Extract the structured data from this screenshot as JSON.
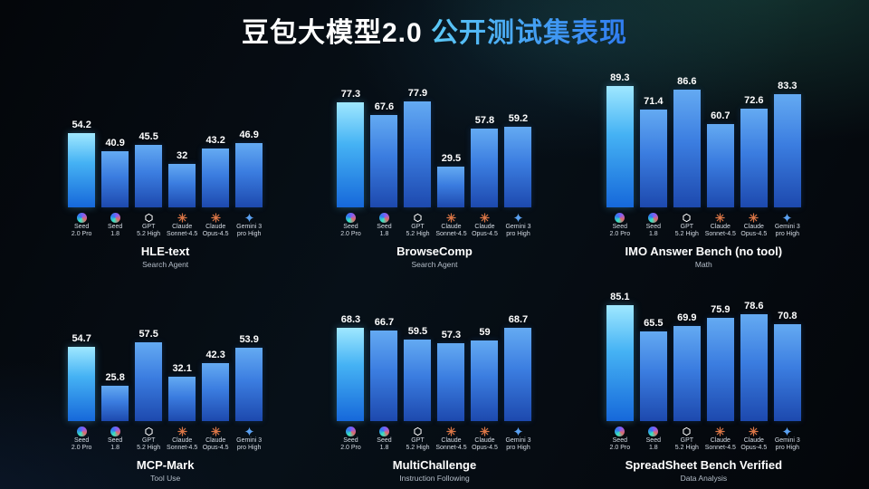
{
  "title": {
    "part1": "豆包大模型2.0",
    "part2": " 公开测试集表现"
  },
  "colors": {
    "accent_blue": "#2f7bf0",
    "accent_cyan": "#5ecdf7",
    "bar_highlight_top": "#9fe8ff",
    "bar_highlight_bottom": "#1668da",
    "bar_top": "#64aaf2",
    "bar_bottom": "#1d49ae",
    "claude_orange": "#d97546",
    "background": "#04060a"
  },
  "models": [
    {
      "label_line1": "Seed",
      "label_line2": "2.0 Pro",
      "icon": "seed-logo-icon"
    },
    {
      "label_line1": "Seed",
      "label_line2": "1.8",
      "icon": "seed-logo-icon"
    },
    {
      "label_line1": "GPT",
      "label_line2": "5.2 High",
      "icon": "openai-icon"
    },
    {
      "label_line1": "Claude",
      "label_line2": "Sonnet-4.5",
      "icon": "claude-icon"
    },
    {
      "label_line1": "Claude",
      "label_line2": "Opus-4.5",
      "icon": "claude-icon"
    },
    {
      "label_line1": "Gemini 3",
      "label_line2": "pro High",
      "icon": "gemini-icon"
    }
  ],
  "chart_data": [
    {
      "type": "bar",
      "title": "HLE-text",
      "subtitle": "Search Agent",
      "categories": [
        "Seed 2.0 Pro",
        "Seed 1.8",
        "GPT 5.2 High",
        "Claude Sonnet-4.5",
        "Claude Opus-4.5",
        "Gemini 3 pro High"
      ],
      "values": [
        54.2,
        40.9,
        45.5,
        32,
        43.2,
        46.9
      ],
      "ylim": [
        0,
        100
      ]
    },
    {
      "type": "bar",
      "title": "BrowseComp",
      "subtitle": "Search Agent",
      "categories": [
        "Seed 2.0 Pro",
        "Seed 1.8",
        "GPT 5.2 High",
        "Claude Sonnet-4.5",
        "Claude Opus-4.5",
        "Gemini 3 pro High"
      ],
      "values": [
        77.3,
        67.6,
        77.9,
        29.5,
        57.8,
        59.2
      ],
      "ylim": [
        0,
        100
      ]
    },
    {
      "type": "bar",
      "title": "IMO Answer Bench (no tool)",
      "subtitle": "Math",
      "categories": [
        "Seed 2.0 Pro",
        "Seed 1.8",
        "GPT 5.2 High",
        "Claude Sonnet-4.5",
        "Claude Opus-4.5",
        "Gemini 3 pro High"
      ],
      "values": [
        89.3,
        71.4,
        86.6,
        60.7,
        72.6,
        83.3
      ],
      "ylim": [
        0,
        100
      ]
    },
    {
      "type": "bar",
      "title": "MCP-Mark",
      "subtitle": "Tool Use",
      "categories": [
        "Seed 2.0 Pro",
        "Seed 1.8",
        "GPT 5.2 High",
        "Claude Sonnet-4.5",
        "Claude Opus-4.5",
        "Gemini 3 pro High"
      ],
      "values": [
        54.7,
        25.8,
        57.5,
        32.1,
        42.3,
        53.9
      ],
      "ylim": [
        0,
        100
      ]
    },
    {
      "type": "bar",
      "title": "MultiChallenge",
      "subtitle": "Instruction Following",
      "categories": [
        "Seed 2.0 Pro",
        "Seed 1.8",
        "GPT 5.2 High",
        "Claude Sonnet-4.5",
        "Claude Opus-4.5",
        "Gemini 3 pro High"
      ],
      "values": [
        68.3,
        66.7,
        59.5,
        57.3,
        59,
        68.7
      ],
      "ylim": [
        0,
        100
      ]
    },
    {
      "type": "bar",
      "title": "SpreadSheet Bench Verified",
      "subtitle": "Data Analysis",
      "categories": [
        "Seed 2.0 Pro",
        "Seed 1.8",
        "GPT 5.2 High",
        "Claude Sonnet-4.5",
        "Claude Opus-4.5",
        "Gemini 3 pro High"
      ],
      "values": [
        85.1,
        65.5,
        69.9,
        75.9,
        78.6,
        70.8
      ],
      "ylim": [
        0,
        100
      ]
    }
  ]
}
